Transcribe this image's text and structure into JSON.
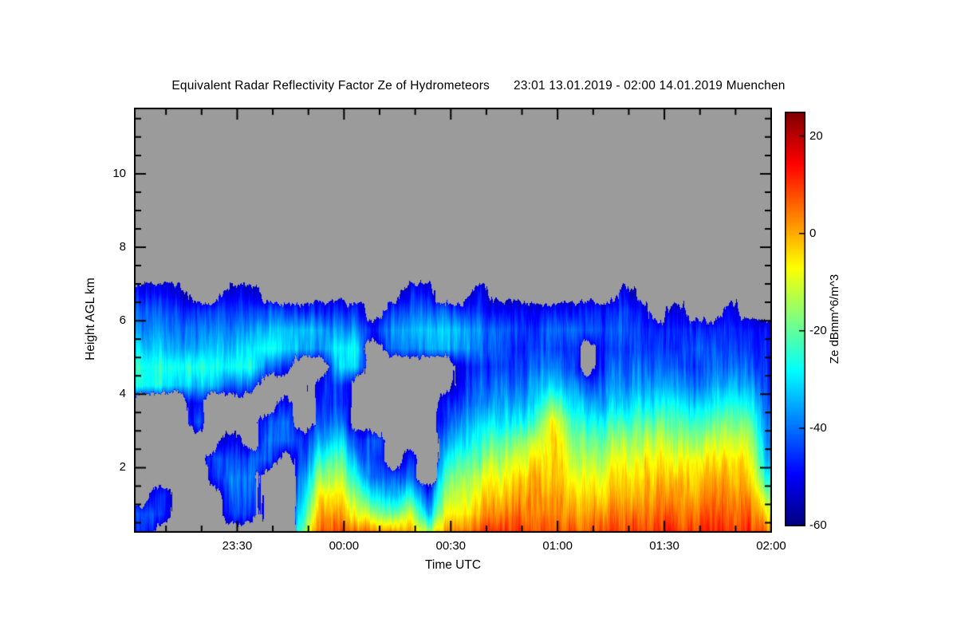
{
  "title": {
    "main": "Equivalent Radar Reflectivity Factor Ze of Hydrometeors",
    "range": "23:01 13.01.2019 - 02:00 14.01.2019 Muenchen"
  },
  "chart_data": {
    "type": "heatmap",
    "title": "Equivalent Radar Reflectivity Factor Ze of Hydrometeors",
    "subtitle": "23:01 13.01.2019 - 02:00 14.01.2019 Muenchen",
    "station": "Muenchen",
    "xlabel": "Time UTC",
    "ylabel": "Height AGL km",
    "x_start_utc": "23:01",
    "x_end_utc": "02:00",
    "x_span_minutes": 179,
    "x_ticks": [
      {
        "label": "23:30",
        "t": 29
      },
      {
        "label": "00:00",
        "t": 59
      },
      {
        "label": "00:30",
        "t": 89
      },
      {
        "label": "01:00",
        "t": 119
      },
      {
        "label": "01:30",
        "t": 149
      },
      {
        "label": "02:00",
        "t": 179
      }
    ],
    "x_minor_tick_minutes": [
      9,
      19,
      39,
      49,
      69,
      79,
      99,
      109,
      129,
      139,
      159,
      169
    ],
    "y_ticks": [
      {
        "label": "2",
        "km": 2
      },
      {
        "label": "4",
        "km": 4
      },
      {
        "label": "6",
        "km": 6
      },
      {
        "label": "8",
        "km": 8
      },
      {
        "label": "10",
        "km": 10
      }
    ],
    "y_minor_step_km": 0.5,
    "y_range_km": [
      0.25,
      11.8
    ],
    "no_data_color": "#9b9b9b",
    "frame_color": "#000000",
    "colorbar": {
      "label": "Ze dBmm^6/m^3",
      "colormap": "jet",
      "range_dbz": [
        -60,
        25
      ],
      "ticks": [
        {
          "label": "20",
          "value": 20
        },
        {
          "label": "0",
          "value": 0
        },
        {
          "label": "-20",
          "value": -20
        },
        {
          "label": "-40",
          "value": -40
        },
        {
          "label": "-60",
          "value": -60
        }
      ]
    },
    "grid": {
      "units": "dBZ (dBmm^6/m^3); null = no echo (gray)",
      "t_minutes_start": 2.5,
      "t_minutes_step": 5,
      "h_km_start": 0.25,
      "h_km_step": 0.5,
      "columns": [
        [
          -46,
          -44,
          null,
          null,
          null,
          null,
          null,
          null,
          -26,
          -24,
          -31,
          -38,
          -43,
          -50,
          null,
          null
        ],
        [
          null,
          -45,
          -46,
          null,
          null,
          null,
          null,
          null,
          -27,
          -25,
          -33,
          -38,
          -43,
          -50,
          null,
          null
        ],
        [
          null,
          null,
          null,
          null,
          null,
          null,
          null,
          null,
          -30,
          -25,
          -34,
          -39,
          -44,
          -52,
          null,
          null
        ],
        [
          null,
          null,
          null,
          null,
          null,
          null,
          -42,
          -47,
          -33,
          -26,
          -35,
          -40,
          -45,
          null,
          null,
          null
        ],
        [
          null,
          null,
          null,
          -47,
          -44,
          null,
          null,
          null,
          -36,
          -28,
          -33,
          -38,
          -44,
          null,
          null,
          null
        ],
        [
          null,
          -44,
          -40,
          -38,
          -42,
          -48,
          null,
          null,
          -40,
          -26,
          -32,
          -37,
          -43,
          -50,
          null,
          null
        ],
        [
          null,
          -45,
          -42,
          -40,
          -44,
          null,
          null,
          null,
          -42,
          -27,
          -30,
          -36,
          -42,
          -50,
          null,
          null
        ],
        [
          null,
          null,
          null,
          null,
          -42,
          -40,
          -45,
          null,
          null,
          -42,
          -28,
          -34,
          -42,
          null,
          null,
          null
        ],
        [
          null,
          null,
          null,
          null,
          null,
          -40,
          -38,
          -46,
          null,
          -44,
          -30,
          -33,
          -44,
          null,
          null,
          null
        ],
        [
          -15,
          -25,
          -32,
          -38,
          -44,
          -48,
          null,
          null,
          null,
          null,
          -36,
          -34,
          -46,
          null,
          null,
          null
        ],
        [
          8,
          2,
          -5,
          -15,
          -25,
          -35,
          -42,
          -46,
          -48,
          null,
          -38,
          -36,
          -48,
          null,
          null,
          null
        ],
        [
          10,
          3,
          -3,
          -12,
          -20,
          -30,
          -38,
          -44,
          -42,
          -30,
          -28,
          -36,
          -46,
          null,
          null,
          null
        ],
        [
          5,
          -8,
          -18,
          -28,
          -38,
          -45,
          null,
          null,
          null,
          -32,
          -30,
          -38,
          -48,
          null,
          null,
          null
        ],
        [
          4,
          -15,
          -30,
          -42,
          -45,
          -42,
          null,
          null,
          null,
          null,
          null,
          -48,
          null,
          null,
          null,
          null
        ],
        [
          3,
          -20,
          -35,
          -44,
          null,
          null,
          null,
          null,
          null,
          null,
          -40,
          -36,
          -44,
          null,
          null,
          null
        ],
        [
          0,
          -10,
          -25,
          -38,
          -45,
          null,
          null,
          null,
          null,
          null,
          -38,
          -34,
          -42,
          -50,
          null,
          null
        ],
        [
          -15,
          -35,
          -45,
          null,
          null,
          null,
          null,
          null,
          null,
          null,
          -36,
          -33,
          -40,
          -48,
          null,
          null
        ],
        [
          2,
          -8,
          -15,
          -22,
          -30,
          -38,
          -44,
          -48,
          null,
          null,
          -34,
          -32,
          -42,
          null,
          null,
          null
        ],
        [
          5,
          -5,
          -10,
          -15,
          -22,
          -30,
          -36,
          -42,
          -46,
          -48,
          -36,
          -34,
          -44,
          null,
          null,
          null
        ],
        [
          8,
          0,
          -5,
          -10,
          -18,
          -25,
          -32,
          -38,
          -42,
          -45,
          -40,
          -38,
          -46,
          -50,
          null,
          null
        ],
        [
          10,
          3,
          -3,
          -8,
          -15,
          -22,
          -30,
          -36,
          -40,
          -44,
          -42,
          -40,
          -48,
          null,
          null,
          null
        ],
        [
          10,
          5,
          0,
          -5,
          -10,
          -18,
          -28,
          -35,
          -40,
          -44,
          -46,
          -44,
          -48,
          null,
          null,
          null
        ],
        [
          8,
          4,
          2,
          0,
          -6,
          -14,
          -24,
          -32,
          -38,
          -42,
          -45,
          -46,
          -50,
          null,
          null,
          null
        ],
        [
          8,
          3,
          0,
          -4,
          -5,
          -4,
          -8,
          -20,
          -32,
          -40,
          -44,
          -40,
          -46,
          null,
          null,
          null
        ],
        [
          7,
          2,
          -2,
          -6,
          -10,
          -15,
          -22,
          -30,
          -38,
          -44,
          -46,
          -42,
          -48,
          null,
          null,
          null
        ],
        [
          6,
          1,
          -4,
          -8,
          -14,
          -20,
          -28,
          -36,
          -44,
          null,
          null,
          -44,
          -48,
          null,
          null,
          null
        ],
        [
          7,
          2,
          -3,
          -7,
          -12,
          -18,
          -26,
          -34,
          -40,
          -44,
          -46,
          -44,
          -48,
          null,
          null,
          null
        ],
        [
          8,
          3,
          -2,
          -5,
          -10,
          -16,
          -24,
          -32,
          -38,
          -42,
          -44,
          -40,
          -42,
          -48,
          null,
          null
        ],
        [
          9,
          4,
          0,
          -4,
          -8,
          -14,
          -22,
          -30,
          -36,
          -40,
          -44,
          -46,
          -50,
          null,
          null,
          null
        ],
        [
          10,
          6,
          2,
          -2,
          -6,
          -12,
          -20,
          -28,
          -36,
          -42,
          -46,
          -48,
          null,
          null,
          null,
          null
        ],
        [
          10,
          5,
          1,
          -3,
          -8,
          -15,
          -22,
          -30,
          -38,
          -44,
          -46,
          -44,
          -48,
          null,
          null,
          null
        ],
        [
          9,
          5,
          0,
          -4,
          -9,
          -16,
          -24,
          -32,
          -40,
          -44,
          -42,
          -46,
          null,
          null,
          null,
          null
        ],
        [
          10,
          6,
          2,
          -2,
          -7,
          -14,
          -22,
          -30,
          -38,
          -42,
          -44,
          -48,
          null,
          null,
          null,
          null
        ],
        [
          11,
          7,
          3,
          0,
          -4,
          -10,
          -18,
          -26,
          -34,
          -40,
          -44,
          -46,
          -50,
          null,
          null,
          null
        ],
        [
          10,
          6,
          2,
          -2,
          -6,
          -12,
          -20,
          -28,
          -36,
          -42,
          -46,
          -48,
          null,
          null,
          null,
          null
        ],
        [
          6,
          -5,
          -15,
          -25,
          -32,
          -36,
          -38,
          -40,
          -42,
          -44,
          -46,
          -48,
          null,
          null,
          null,
          null
        ]
      ]
    }
  }
}
